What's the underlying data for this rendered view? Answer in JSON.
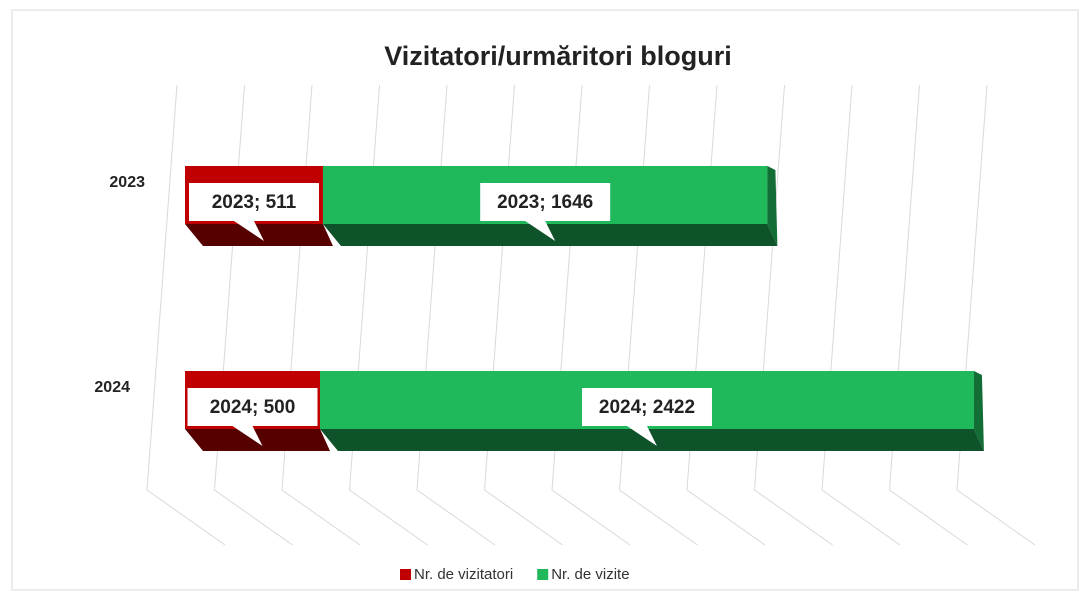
{
  "chart_data": {
    "type": "bar3d_stacked_horizontal",
    "title": "Vizitatori/urmăritori bloguri",
    "categories": [
      "2023",
      "2024"
    ],
    "series": [
      {
        "name": "Nr. de vizitatori",
        "color": "#c00000",
        "values": [
          511,
          500
        ],
        "value_labels": [
          "2023; 511",
          "2024; 500"
        ]
      },
      {
        "name": "Nr. de vizite",
        "color": "#1fb85a",
        "values": [
          1646,
          2422
        ],
        "value_labels": [
          "2023; 1646",
          "2024; 2422"
        ]
      }
    ],
    "xlim": [
      0,
      3000
    ],
    "xticks": [
      0,
      250,
      500,
      750,
      1000,
      1250,
      1500,
      1750,
      2000,
      2250,
      2500,
      2750,
      3000
    ],
    "grid": true,
    "legend": "bottom"
  }
}
